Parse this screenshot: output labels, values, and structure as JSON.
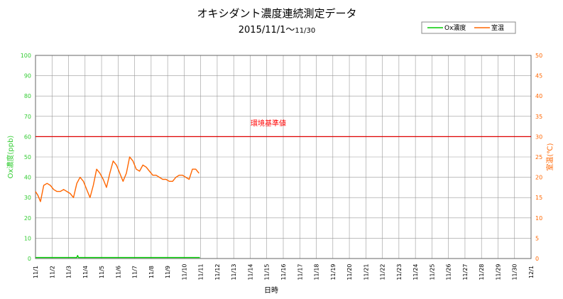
{
  "chart_data": {
    "type": "line",
    "title": "オキシダント濃度連続測定データ",
    "subtitle_main": "2015/11/1～",
    "subtitle_end": "11/30",
    "xlabel": "日時",
    "ylabel_left": "Ox濃度(ppb)",
    "ylabel_right": "室温(℃)",
    "ylim_left": [
      0,
      100
    ],
    "ylim_right": [
      0,
      50
    ],
    "yticks_left": [
      0,
      10,
      20,
      30,
      40,
      50,
      60,
      70,
      80,
      90,
      100
    ],
    "yticks_right": [
      0,
      5,
      10,
      15,
      20,
      25,
      30,
      35,
      40,
      45,
      50
    ],
    "xlim": [
      0,
      30
    ],
    "xtick_labels": [
      "11/1",
      "11/2",
      "11/3",
      "11/4",
      "11/5",
      "11/6",
      "11/7",
      "11/8",
      "11/9",
      "11/10",
      "11/11",
      "11/12",
      "11/13",
      "11/14",
      "11/15",
      "11/16",
      "11/17",
      "11/18",
      "11/19",
      "11/20",
      "11/21",
      "11/22",
      "11/23",
      "11/24",
      "11/25",
      "11/26",
      "11/27",
      "11/28",
      "11/29",
      "11/30",
      "12/1"
    ],
    "grid": true,
    "legend_position": "top-right",
    "reference_line": {
      "label": "環境基準値",
      "value": 60,
      "axis": "left",
      "color": "#dd0000"
    },
    "series": [
      {
        "name": "Ox濃度",
        "axis": "left",
        "color": "#00cc00",
        "x": [
          0,
          2.5,
          2.55,
          2.6,
          2.65,
          5,
          7.5,
          9.5,
          9.95
        ],
        "y": [
          0.5,
          0.5,
          1.5,
          0.5,
          0.5,
          0.5,
          0.5,
          0.5,
          0.5
        ]
      },
      {
        "name": "室温",
        "axis": "right",
        "color": "#ff6600",
        "x": [
          0,
          0.15,
          0.3,
          0.5,
          0.7,
          0.9,
          1.1,
          1.3,
          1.5,
          1.7,
          1.9,
          2.1,
          2.3,
          2.5,
          2.7,
          2.9,
          3.1,
          3.3,
          3.5,
          3.7,
          3.9,
          4.1,
          4.3,
          4.5,
          4.7,
          4.9,
          5.1,
          5.3,
          5.5,
          5.7,
          5.9,
          6.1,
          6.3,
          6.5,
          6.7,
          6.9,
          7.1,
          7.3,
          7.5,
          7.7,
          7.9,
          8.1,
          8.3,
          8.5,
          8.7,
          8.9,
          9.1,
          9.3,
          9.5,
          9.7,
          9.9
        ],
        "y": [
          16.5,
          15.5,
          14,
          18,
          18.5,
          18,
          17,
          16.5,
          16.5,
          17,
          16.5,
          16,
          15,
          18.5,
          20,
          19,
          17,
          15,
          18,
          22,
          21,
          19.5,
          17.5,
          21,
          24,
          23,
          21,
          19,
          21,
          25,
          24,
          22,
          21.5,
          23,
          22.5,
          21.5,
          20.5,
          20.5,
          20,
          19.5,
          19.5,
          19,
          19,
          20,
          20.5,
          20.5,
          20,
          19.5,
          22,
          22,
          21
        ]
      }
    ]
  }
}
